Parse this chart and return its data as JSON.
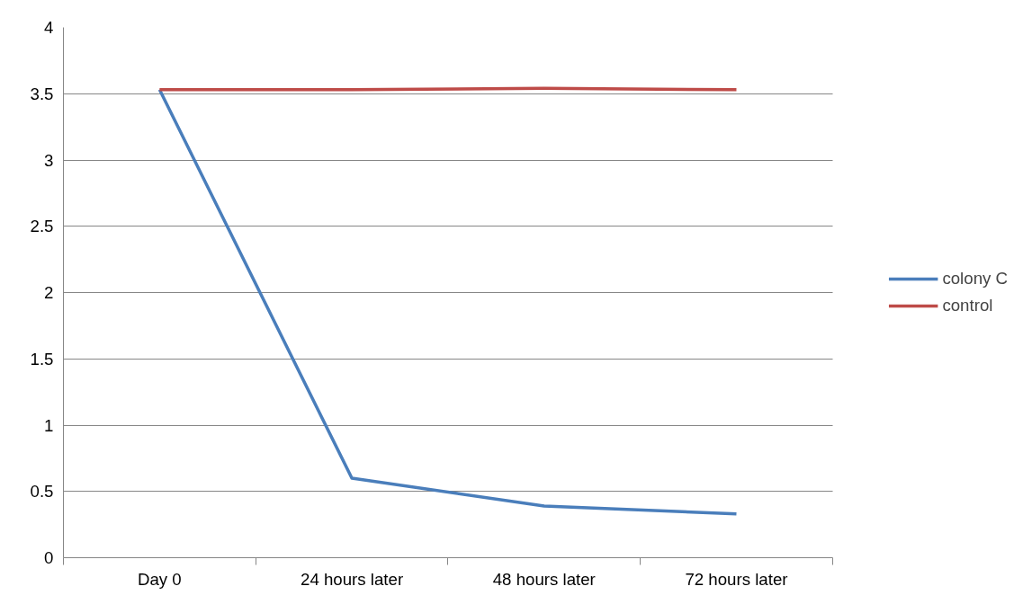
{
  "chart_data": {
    "type": "line",
    "categories": [
      "Day 0",
      "24 hours later",
      "48 hours later",
      "72 hours later"
    ],
    "series": [
      {
        "name": "colony C",
        "color": "#4a7ebb",
        "values": [
          3.53,
          0.6,
          0.39,
          0.33
        ]
      },
      {
        "name": "control",
        "color": "#be4b48",
        "values": [
          3.53,
          3.53,
          3.54,
          3.53
        ]
      }
    ],
    "ylim": [
      0,
      4
    ],
    "yticks": [
      0,
      0.5,
      1,
      1.5,
      2,
      2.5,
      3,
      3.5,
      4
    ],
    "grid": "y",
    "legend": "right",
    "marker": "none",
    "line_style": "solid"
  }
}
